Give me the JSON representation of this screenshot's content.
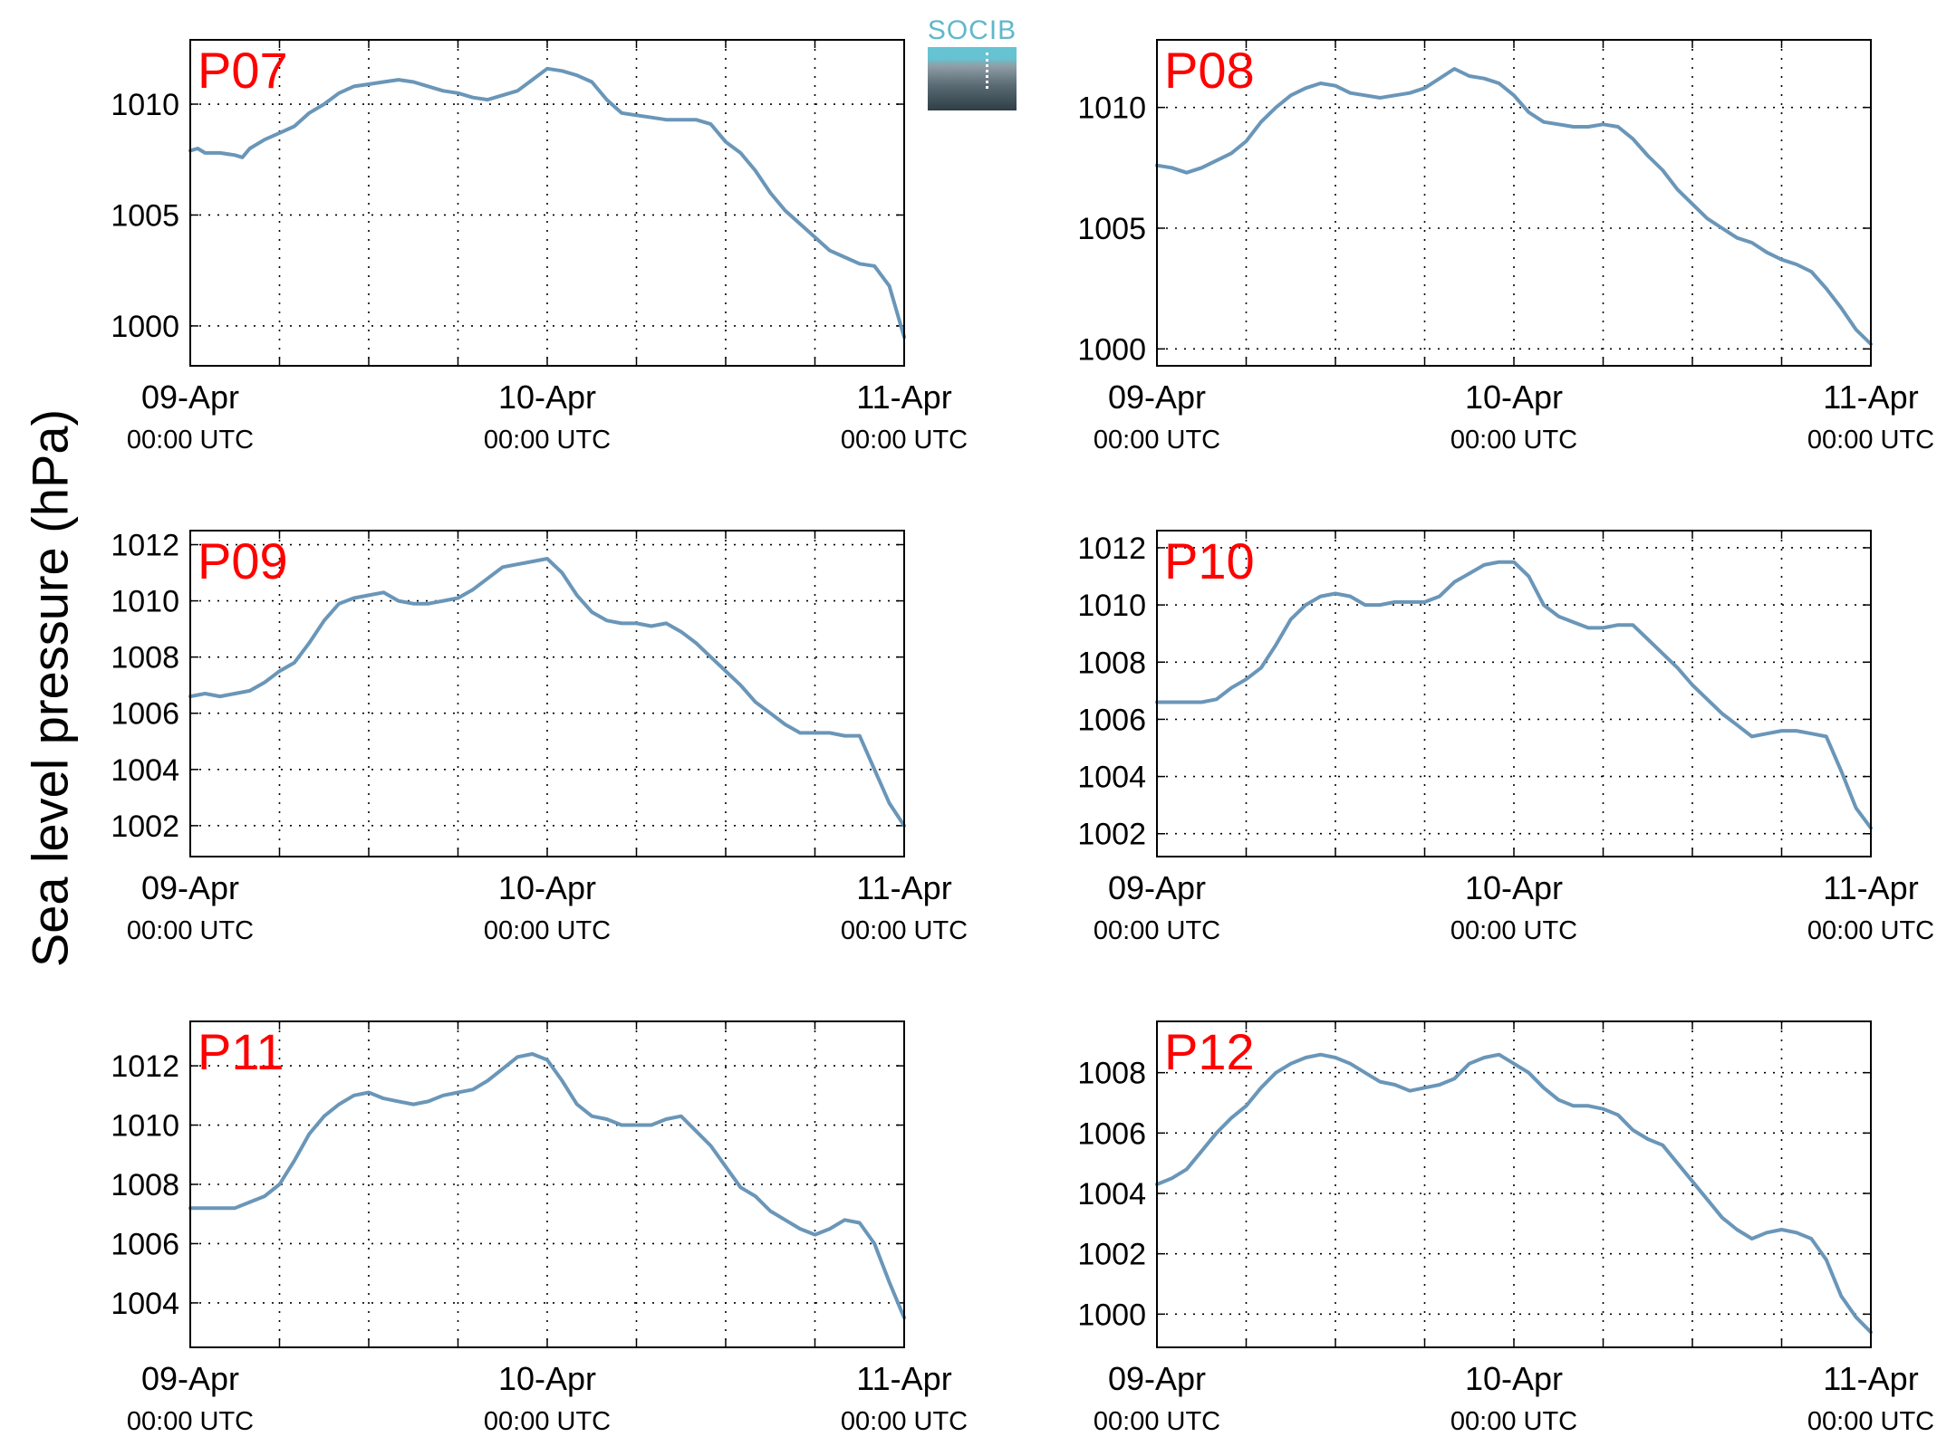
{
  "figure": {
    "ylabel": "Sea level pressure (hPa)",
    "logo_text": "SOCIB",
    "line_color": "#6a96b8",
    "station_label_color": "#ff0000"
  },
  "chart_data": [
    {
      "type": "line",
      "station": "P07",
      "x_ticks": [
        {
          "t": 0,
          "date": "09-Apr",
          "time": "00:00 UTC"
        },
        {
          "t": 24,
          "date": "10-Apr",
          "time": "00:00 UTC"
        },
        {
          "t": 48,
          "date": "11-Apr",
          "time": "00:00 UTC"
        }
      ],
      "x_grid_hours": [
        6,
        12,
        18,
        24,
        30,
        36,
        42
      ],
      "xlim": [
        0,
        48
      ],
      "ylim": [
        998.2,
        1012.9
      ],
      "y_ticks": [
        1000,
        1005,
        1010
      ],
      "grid": true,
      "series": [
        {
          "x": [
            0,
            0.5,
            1,
            2,
            3,
            3.5,
            4,
            5,
            6,
            7,
            8,
            9,
            10,
            11,
            12,
            13,
            14,
            15,
            16,
            17,
            18,
            19,
            20,
            21,
            22,
            23,
            24,
            25,
            26,
            27,
            28,
            29,
            30,
            31,
            32,
            33,
            34,
            35,
            36,
            37,
            38,
            39,
            40,
            41,
            42,
            43,
            44,
            45,
            46,
            47,
            48
          ],
          "y": [
            1007.9,
            1008.0,
            1007.8,
            1007.8,
            1007.7,
            1007.6,
            1008.0,
            1008.4,
            1008.7,
            1009.0,
            1009.6,
            1010.0,
            1010.5,
            1010.8,
            1010.9,
            1011.0,
            1011.1,
            1011.0,
            1010.8,
            1010.6,
            1010.5,
            1010.3,
            1010.2,
            1010.4,
            1010.6,
            1011.1,
            1011.6,
            1011.5,
            1011.3,
            1011.0,
            1010.2,
            1009.6,
            1009.5,
            1009.4,
            1009.3,
            1009.3,
            1009.3,
            1009.1,
            1008.3,
            1007.8,
            1007.0,
            1006.0,
            1005.2,
            1004.6,
            1004.0,
            1003.4,
            1003.1,
            1002.8,
            1002.7,
            1001.8,
            999.5
          ]
        }
      ]
    },
    {
      "type": "line",
      "station": "P08",
      "x_ticks": [
        {
          "t": 0,
          "date": "09-Apr",
          "time": "00:00 UTC"
        },
        {
          "t": 24,
          "date": "10-Apr",
          "time": "00:00 UTC"
        },
        {
          "t": 48,
          "date": "11-Apr",
          "time": "00:00 UTC"
        }
      ],
      "x_grid_hours": [
        6,
        12,
        18,
        24,
        30,
        36,
        42
      ],
      "xlim": [
        0,
        48
      ],
      "ylim": [
        999.3,
        1012.8
      ],
      "y_ticks": [
        1000,
        1005,
        1010
      ],
      "grid": true,
      "series": [
        {
          "x": [
            0,
            1,
            2,
            3,
            4,
            5,
            6,
            7,
            8,
            9,
            10,
            11,
            12,
            13,
            14,
            15,
            16,
            17,
            18,
            19,
            20,
            21,
            22,
            23,
            24,
            25,
            26,
            27,
            28,
            29,
            30,
            31,
            32,
            33,
            34,
            35,
            36,
            37,
            38,
            39,
            40,
            41,
            42,
            43,
            44,
            45,
            46,
            47,
            48
          ],
          "y": [
            1007.6,
            1007.5,
            1007.3,
            1007.5,
            1007.8,
            1008.1,
            1008.6,
            1009.4,
            1010.0,
            1010.5,
            1010.8,
            1011.0,
            1010.9,
            1010.6,
            1010.5,
            1010.4,
            1010.5,
            1010.6,
            1010.8,
            1011.2,
            1011.6,
            1011.3,
            1011.2,
            1011.0,
            1010.5,
            1009.8,
            1009.4,
            1009.3,
            1009.2,
            1009.2,
            1009.3,
            1009.2,
            1008.7,
            1008.0,
            1007.4,
            1006.6,
            1006.0,
            1005.4,
            1005.0,
            1004.6,
            1004.4,
            1004.0,
            1003.7,
            1003.5,
            1003.2,
            1002.5,
            1001.7,
            1000.8,
            1000.2
          ]
        }
      ]
    },
    {
      "type": "line",
      "station": "P09",
      "x_ticks": [
        {
          "t": 0,
          "date": "09-Apr",
          "time": "00:00 UTC"
        },
        {
          "t": 24,
          "date": "10-Apr",
          "time": "00:00 UTC"
        },
        {
          "t": 48,
          "date": "11-Apr",
          "time": "00:00 UTC"
        }
      ],
      "x_grid_hours": [
        6,
        12,
        18,
        24,
        30,
        36,
        42
      ],
      "xlim": [
        0,
        48
      ],
      "ylim": [
        1000.9,
        1012.5
      ],
      "y_ticks": [
        1002,
        1004,
        1006,
        1008,
        1010,
        1012
      ],
      "grid": true,
      "series": [
        {
          "x": [
            0,
            1,
            2,
            3,
            4,
            5,
            6,
            7,
            8,
            9,
            10,
            11,
            12,
            13,
            14,
            15,
            16,
            17,
            18,
            19,
            20,
            21,
            22,
            23,
            24,
            25,
            26,
            27,
            28,
            29,
            30,
            31,
            32,
            33,
            34,
            35,
            36,
            37,
            38,
            39,
            40,
            41,
            42,
            43,
            44,
            45,
            46,
            47,
            48
          ],
          "y": [
            1006.6,
            1006.7,
            1006.6,
            1006.7,
            1006.8,
            1007.1,
            1007.5,
            1007.8,
            1008.5,
            1009.3,
            1009.9,
            1010.1,
            1010.2,
            1010.3,
            1010.0,
            1009.9,
            1009.9,
            1010.0,
            1010.1,
            1010.4,
            1010.8,
            1011.2,
            1011.3,
            1011.4,
            1011.5,
            1011.0,
            1010.2,
            1009.6,
            1009.3,
            1009.2,
            1009.2,
            1009.1,
            1009.2,
            1008.9,
            1008.5,
            1008.0,
            1007.5,
            1007.0,
            1006.4,
            1006.0,
            1005.6,
            1005.3,
            1005.3,
            1005.3,
            1005.2,
            1005.2,
            1004.0,
            1002.8,
            1002.0
          ]
        }
      ]
    },
    {
      "type": "line",
      "station": "P10",
      "x_ticks": [
        {
          "t": 0,
          "date": "09-Apr",
          "time": "00:00 UTC"
        },
        {
          "t": 24,
          "date": "10-Apr",
          "time": "00:00 UTC"
        },
        {
          "t": 48,
          "date": "11-Apr",
          "time": "00:00 UTC"
        }
      ],
      "x_grid_hours": [
        6,
        12,
        18,
        24,
        30,
        36,
        42
      ],
      "xlim": [
        0,
        48
      ],
      "ylim": [
        1001.2,
        1012.6
      ],
      "y_ticks": [
        1002,
        1004,
        1006,
        1008,
        1010,
        1012
      ],
      "grid": true,
      "series": [
        {
          "x": [
            0,
            1,
            2,
            3,
            4,
            5,
            6,
            7,
            8,
            9,
            10,
            11,
            12,
            13,
            14,
            15,
            16,
            17,
            18,
            19,
            20,
            21,
            22,
            23,
            24,
            25,
            26,
            27,
            28,
            29,
            30,
            31,
            32,
            33,
            34,
            35,
            36,
            37,
            38,
            39,
            40,
            41,
            42,
            43,
            44,
            45,
            46,
            47,
            48
          ],
          "y": [
            1006.6,
            1006.6,
            1006.6,
            1006.6,
            1006.7,
            1007.1,
            1007.4,
            1007.8,
            1008.6,
            1009.5,
            1010.0,
            1010.3,
            1010.4,
            1010.3,
            1010.0,
            1010.0,
            1010.1,
            1010.1,
            1010.1,
            1010.3,
            1010.8,
            1011.1,
            1011.4,
            1011.5,
            1011.5,
            1011.0,
            1010.0,
            1009.6,
            1009.4,
            1009.2,
            1009.2,
            1009.3,
            1009.3,
            1008.8,
            1008.3,
            1007.8,
            1007.2,
            1006.7,
            1006.2,
            1005.8,
            1005.4,
            1005.5,
            1005.6,
            1005.6,
            1005.5,
            1005.4,
            1004.2,
            1002.9,
            1002.2
          ]
        }
      ]
    },
    {
      "type": "line",
      "station": "P11",
      "x_ticks": [
        {
          "t": 0,
          "date": "09-Apr",
          "time": "00:00 UTC"
        },
        {
          "t": 24,
          "date": "10-Apr",
          "time": "00:00 UTC"
        },
        {
          "t": 48,
          "date": "11-Apr",
          "time": "00:00 UTC"
        }
      ],
      "x_grid_hours": [
        6,
        12,
        18,
        24,
        30,
        36,
        42
      ],
      "xlim": [
        0,
        48
      ],
      "ylim": [
        1002.5,
        1013.5
      ],
      "y_ticks": [
        1004,
        1006,
        1008,
        1010,
        1012
      ],
      "grid": true,
      "series": [
        {
          "x": [
            0,
            1,
            2,
            3,
            4,
            5,
            6,
            7,
            8,
            9,
            10,
            11,
            12,
            13,
            14,
            15,
            16,
            17,
            18,
            19,
            20,
            21,
            22,
            23,
            24,
            25,
            26,
            27,
            28,
            29,
            30,
            31,
            32,
            33,
            34,
            35,
            36,
            37,
            38,
            39,
            40,
            41,
            42,
            43,
            44,
            45,
            46,
            47,
            48
          ],
          "y": [
            1007.2,
            1007.2,
            1007.2,
            1007.2,
            1007.4,
            1007.6,
            1008.0,
            1008.8,
            1009.7,
            1010.3,
            1010.7,
            1011.0,
            1011.1,
            1010.9,
            1010.8,
            1010.7,
            1010.8,
            1011.0,
            1011.1,
            1011.2,
            1011.5,
            1011.9,
            1012.3,
            1012.4,
            1012.2,
            1011.5,
            1010.7,
            1010.3,
            1010.2,
            1010.0,
            1010.0,
            1010.0,
            1010.2,
            1010.3,
            1009.8,
            1009.3,
            1008.6,
            1007.9,
            1007.6,
            1007.1,
            1006.8,
            1006.5,
            1006.3,
            1006.5,
            1006.8,
            1006.7,
            1006.0,
            1004.7,
            1003.5
          ]
        }
      ]
    },
    {
      "type": "line",
      "station": "P12",
      "x_ticks": [
        {
          "t": 0,
          "date": "09-Apr",
          "time": "00:00 UTC"
        },
        {
          "t": 24,
          "date": "10-Apr",
          "time": "00:00 UTC"
        },
        {
          "t": 48,
          "date": "11-Apr",
          "time": "00:00 UTC"
        }
      ],
      "x_grid_hours": [
        6,
        12,
        18,
        24,
        30,
        36,
        42
      ],
      "xlim": [
        0,
        48
      ],
      "ylim": [
        998.9,
        1009.7
      ],
      "y_ticks": [
        1000,
        1002,
        1004,
        1006,
        1008
      ],
      "grid": true,
      "series": [
        {
          "x": [
            0,
            1,
            2,
            3,
            4,
            5,
            6,
            7,
            8,
            9,
            10,
            11,
            12,
            13,
            14,
            15,
            16,
            17,
            18,
            19,
            20,
            21,
            22,
            23,
            24,
            25,
            26,
            27,
            28,
            29,
            30,
            31,
            32,
            33,
            34,
            35,
            36,
            37,
            38,
            39,
            40,
            41,
            42,
            43,
            44,
            45,
            46,
            47,
            48
          ],
          "y": [
            1004.3,
            1004.5,
            1004.8,
            1005.4,
            1006.0,
            1006.5,
            1006.9,
            1007.5,
            1008.0,
            1008.3,
            1008.5,
            1008.6,
            1008.5,
            1008.3,
            1008.0,
            1007.7,
            1007.6,
            1007.4,
            1007.5,
            1007.6,
            1007.8,
            1008.3,
            1008.5,
            1008.6,
            1008.3,
            1008.0,
            1007.5,
            1007.1,
            1006.9,
            1006.9,
            1006.8,
            1006.6,
            1006.1,
            1005.8,
            1005.6,
            1005.0,
            1004.4,
            1003.8,
            1003.2,
            1002.8,
            1002.5,
            1002.7,
            1002.8,
            1002.7,
            1002.5,
            1001.8,
            1000.6,
            999.9,
            999.4
          ]
        }
      ]
    }
  ]
}
